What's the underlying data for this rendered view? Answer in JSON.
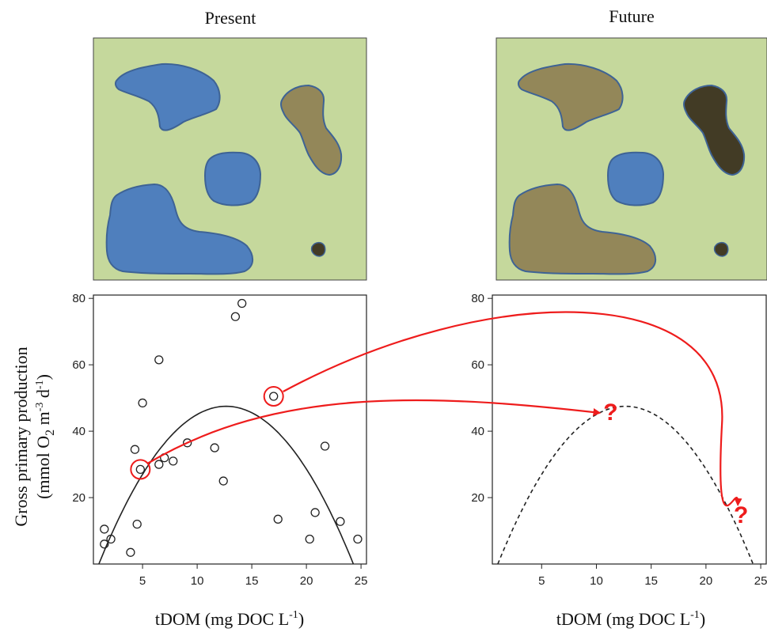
{
  "panels": {
    "present_title": "Present",
    "future_title": "Future"
  },
  "colors": {
    "land": "#c5d89c",
    "clear_water": "#4f7fbd",
    "brown_water": "#938759",
    "dark_water": "#423b25",
    "outline": "#3e6395",
    "arrow": "#ee1c1c",
    "curve": "#222222"
  },
  "maps": {
    "present": {
      "lakes": [
        {
          "name": "lake-top-left",
          "color": "clear"
        },
        {
          "name": "lake-right-elongated",
          "color": "brown"
        },
        {
          "name": "lake-center-small",
          "color": "clear"
        },
        {
          "name": "lake-bottom-left-large",
          "color": "clear"
        },
        {
          "name": "pond-tiny",
          "color": "dark"
        }
      ]
    },
    "future": {
      "lakes": [
        {
          "name": "lake-top-left",
          "color": "brown"
        },
        {
          "name": "lake-right-elongated",
          "color": "dark"
        },
        {
          "name": "lake-center-small",
          "color": "clear"
        },
        {
          "name": "lake-bottom-left-large",
          "color": "brown"
        },
        {
          "name": "pond-tiny",
          "color": "dark"
        }
      ]
    }
  },
  "axes": {
    "ylabel_line1": "Gross primary production",
    "ylabel_line2_parts": [
      "(mmol O",
      "2",
      " m",
      "-3",
      " d",
      "-1",
      ")"
    ],
    "xlabel_parts": [
      "tDOM (mg DOC L",
      "-1",
      ")"
    ]
  },
  "chart_data": [
    {
      "type": "scatter",
      "title": "",
      "xlim": [
        0.5,
        25.5
      ],
      "ylim": [
        0,
        81
      ],
      "xticks": [
        5,
        10,
        15,
        20,
        25
      ],
      "yticks": [
        20,
        40,
        60,
        80
      ],
      "points": [
        {
          "x": 1.5,
          "y": 10.5
        },
        {
          "x": 1.5,
          "y": 6
        },
        {
          "x": 2.1,
          "y": 7.5
        },
        {
          "x": 3.9,
          "y": 3.5
        },
        {
          "x": 4.3,
          "y": 34.5
        },
        {
          "x": 4.5,
          "y": 12
        },
        {
          "x": 4.8,
          "y": 28.5
        },
        {
          "x": 5.0,
          "y": 48.5
        },
        {
          "x": 6.5,
          "y": 61.5
        },
        {
          "x": 6.5,
          "y": 30
        },
        {
          "x": 7.0,
          "y": 32
        },
        {
          "x": 7.8,
          "y": 31
        },
        {
          "x": 9.1,
          "y": 36.5
        },
        {
          "x": 11.6,
          "y": 35
        },
        {
          "x": 12.4,
          "y": 25
        },
        {
          "x": 13.5,
          "y": 74.5
        },
        {
          "x": 14.1,
          "y": 78.5
        },
        {
          "x": 17.0,
          "y": 50.5
        },
        {
          "x": 17.4,
          "y": 13.5
        },
        {
          "x": 20.3,
          "y": 7.5
        },
        {
          "x": 20.8,
          "y": 15.5
        },
        {
          "x": 21.7,
          "y": 35.5
        },
        {
          "x": 23.1,
          "y": 12.8
        },
        {
          "x": 24.7,
          "y": 7.5
        }
      ],
      "fit": {
        "type": "quadratic",
        "peak_x": 12.6,
        "peak_y": 47.5,
        "root_left": 1.0,
        "root_right": 24.3,
        "style": "solid"
      },
      "highlighted_points": [
        {
          "x": 4.8,
          "y": 28.5
        },
        {
          "x": 17.0,
          "y": 50.5
        }
      ]
    },
    {
      "type": "line",
      "title": "",
      "xlim": [
        0.5,
        25.5
      ],
      "ylim": [
        0,
        81
      ],
      "xticks": [
        5,
        10,
        15,
        20,
        25
      ],
      "yticks": [
        20,
        40,
        60,
        80
      ],
      "fit": {
        "type": "quadratic",
        "peak_x": 12.6,
        "peak_y": 47.5,
        "root_left": 1.0,
        "root_right": 24.3,
        "style": "dashed"
      },
      "unknown_markers": [
        {
          "label": "?",
          "x": 11.3,
          "y": 46
        },
        {
          "label": "?",
          "x": 23.2,
          "y": 15
        }
      ]
    }
  ]
}
